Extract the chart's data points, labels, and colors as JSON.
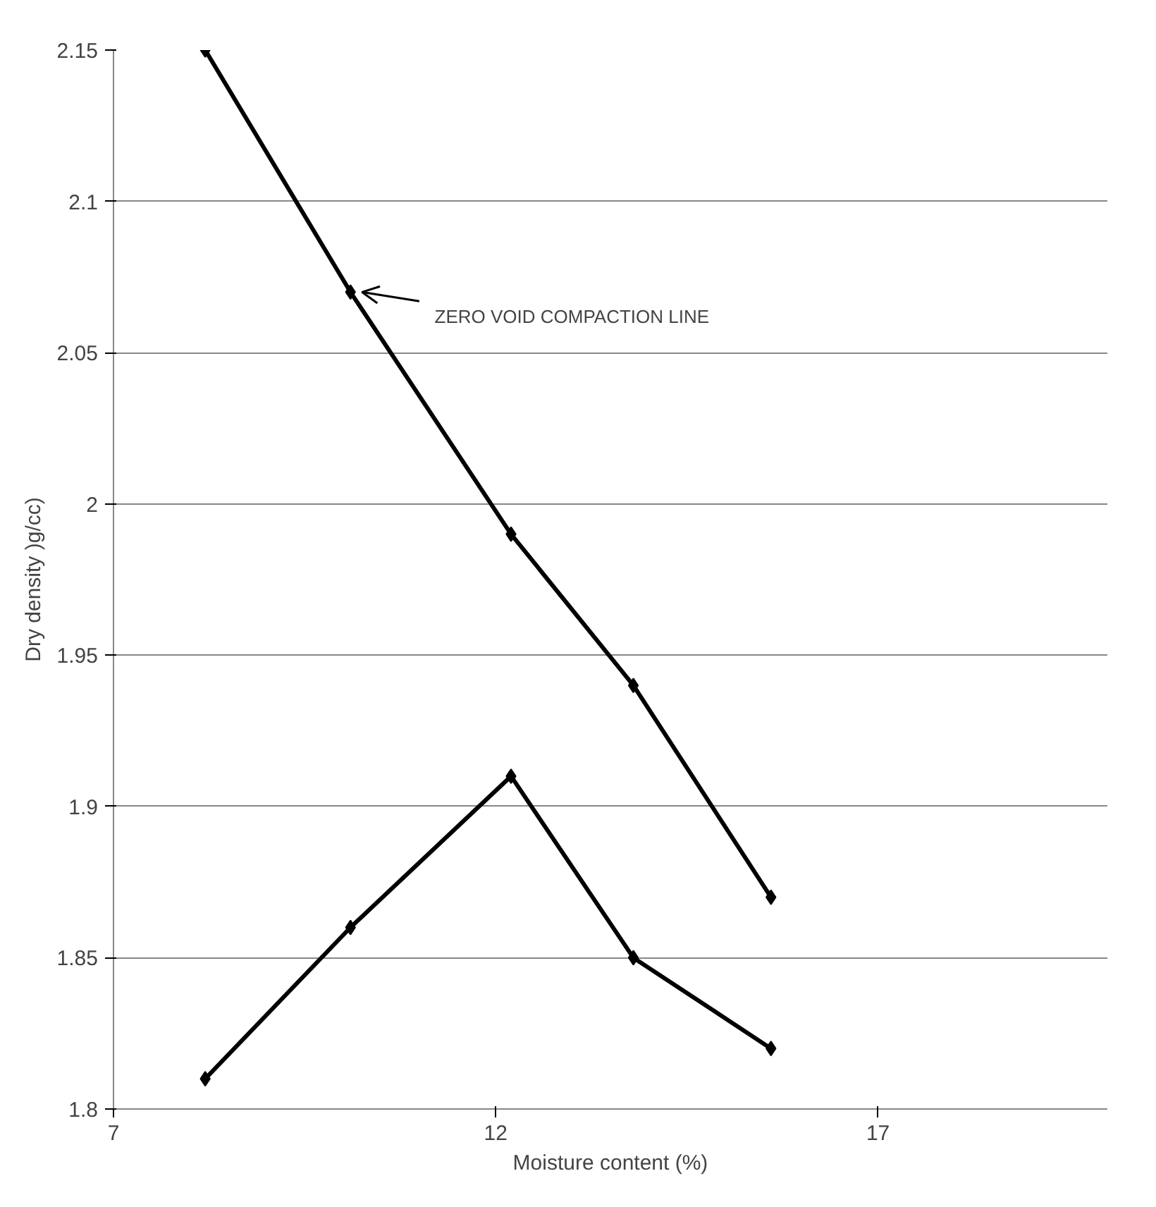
{
  "chart_data": {
    "type": "line",
    "xlabel": "Moisture content (%)",
    "ylabel": "Dry density )g/cc)",
    "xlim": [
      7,
      20
    ],
    "xticks": [
      7,
      12,
      17
    ],
    "ylim": [
      1.8,
      2.15
    ],
    "yticks": [
      1.8,
      1.85,
      1.9,
      1.95,
      2,
      2.05,
      2.1,
      2.15
    ],
    "grid": "y",
    "marker": "diamond",
    "line_style": "solid",
    "series": [
      {
        "color": "#000000",
        "x": [
          8.2,
          10.1,
          12.2,
          13.8,
          15.6
        ],
        "values": [
          2.15,
          2.07,
          1.99,
          1.94,
          1.87
        ]
      },
      {
        "color": "#000000",
        "x": [
          8.2,
          10.1,
          12.2,
          13.8,
          15.6
        ],
        "values": [
          1.81,
          1.86,
          1.91,
          1.85,
          1.82
        ]
      }
    ],
    "annotations": [
      {
        "text": "ZERO VOID COMPACTION LINE",
        "x": 10.1,
        "y": 2.07
      }
    ]
  }
}
